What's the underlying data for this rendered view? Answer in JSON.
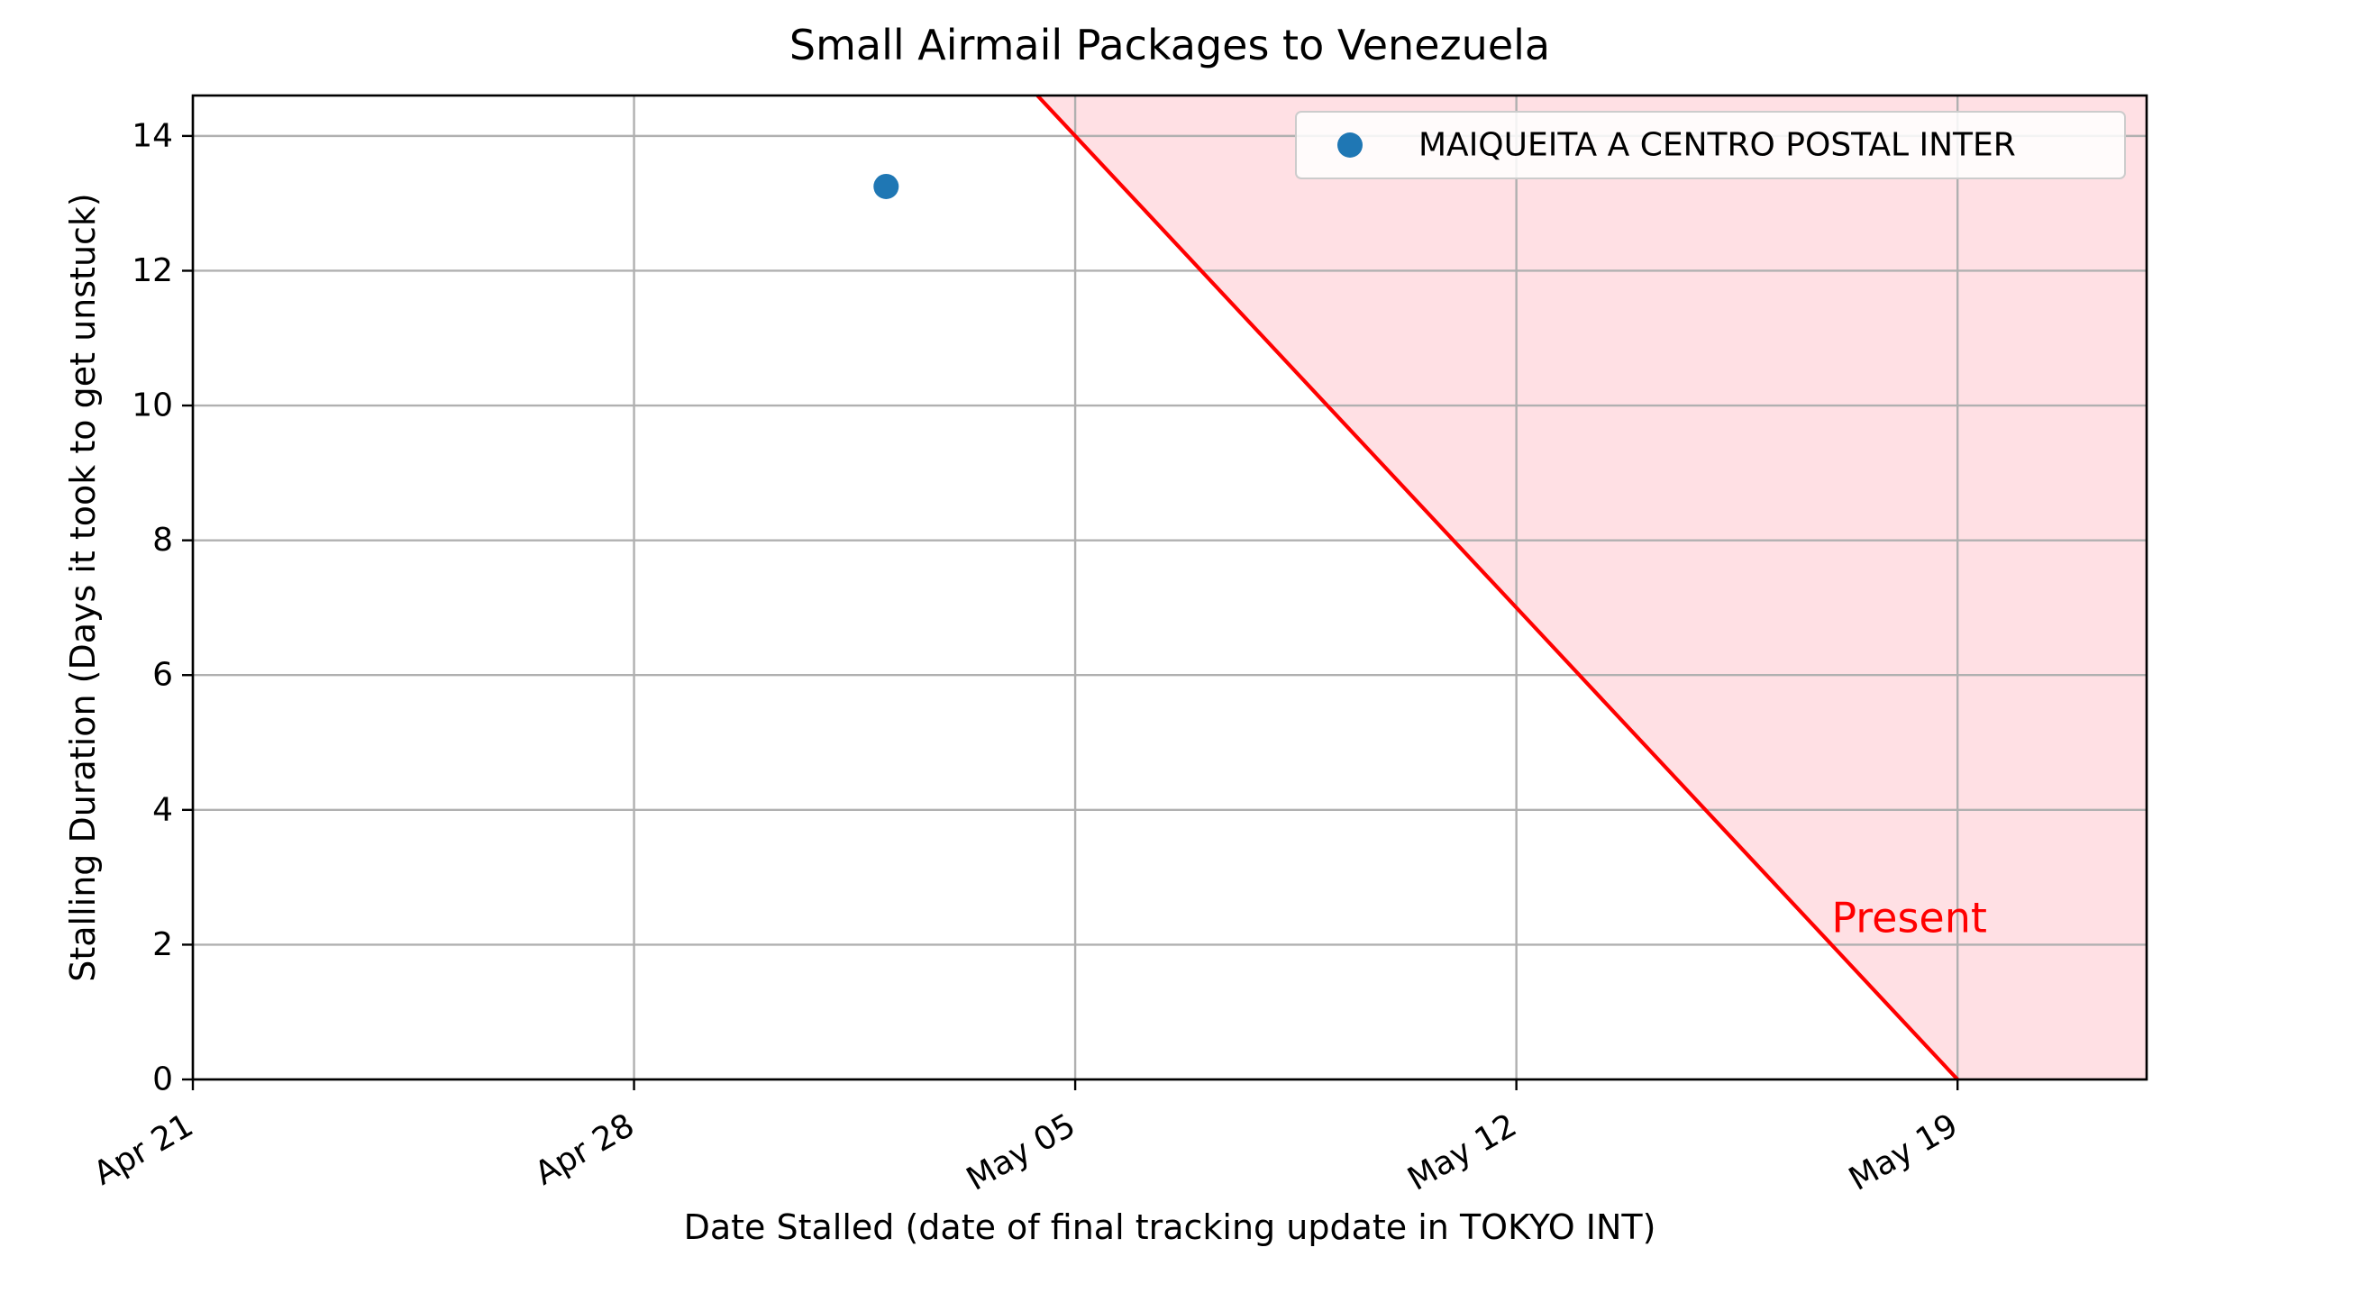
{
  "chart_data": {
    "type": "scatter",
    "title": "Small Airmail Packages to Venezuela",
    "xlabel": "Date Stalled (date of final tracking update in TOKYO INT)",
    "ylabel": "Stalling Duration (Days it took to get unstuck)",
    "x_axis": {
      "type": "date",
      "range": [
        "2021-04-21",
        "2021-05-22"
      ],
      "ticks": [
        {
          "value": "2021-04-21",
          "label": "Apr 21"
        },
        {
          "value": "2021-04-28",
          "label": "Apr 28"
        },
        {
          "value": "2021-05-05",
          "label": "May 05"
        },
        {
          "value": "2021-05-12",
          "label": "May 12"
        },
        {
          "value": "2021-05-19",
          "label": "May 19"
        }
      ]
    },
    "y_axis": {
      "range": [
        0,
        14.6
      ],
      "ticks": [
        0,
        2,
        4,
        6,
        8,
        10,
        12,
        14
      ]
    },
    "grid": true,
    "legend_position": "top-right",
    "series": [
      {
        "name": "MAIQUEITA A CENTRO POSTAL INTER",
        "color": "#1f77b4",
        "points": [
          {
            "x": "2021-05-02",
            "y": 13.25
          }
        ]
      }
    ],
    "present_line": {
      "label": "Present",
      "color": "#ff0000",
      "fill_color": "#ffe0e4",
      "date": "2021-05-19",
      "label_position": {
        "x": "2021-05-17",
        "y": 2.4
      }
    }
  }
}
